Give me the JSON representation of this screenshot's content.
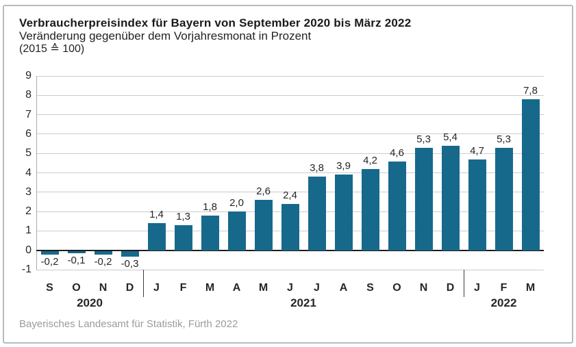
{
  "header": {
    "title": "Verbraucherpreisindex für Bayern von September 2020 bis März 2022",
    "subtitle": "Veränderung gegenüber dem Vorjahresmonat in Prozent",
    "scale_note": "(2015 ≙ 100)"
  },
  "chart_data": {
    "type": "bar",
    "title": "Verbraucherpreisindex für Bayern von September 2020 bis März 2022",
    "subtitle": "Veränderung gegenüber dem Vorjahresmonat in Prozent",
    "unit_note": "(2015 ≙ 100)",
    "categories": [
      "S",
      "O",
      "N",
      "D",
      "J",
      "F",
      "M",
      "A",
      "M",
      "J",
      "J",
      "A",
      "S",
      "O",
      "N",
      "D",
      "J",
      "F",
      "M"
    ],
    "values": [
      -0.2,
      -0.1,
      -0.2,
      -0.3,
      1.4,
      1.3,
      1.8,
      2.0,
      2.6,
      2.4,
      3.8,
      3.9,
      4.2,
      4.6,
      5.3,
      5.4,
      4.7,
      5.3,
      7.8
    ],
    "value_labels": [
      "-0,2",
      "-0,1",
      "-0,2",
      "-0,3",
      "1,4",
      "1,3",
      "1,8",
      "2,0",
      "2,6",
      "2,4",
      "3,8",
      "3,9",
      "4,2",
      "4,6",
      "5,3",
      "5,4",
      "4,7",
      "5,3",
      "7,8"
    ],
    "year_groups": [
      {
        "label": "2020",
        "start": 0,
        "end": 3
      },
      {
        "label": "2021",
        "start": 4,
        "end": 15
      },
      {
        "label": "2022",
        "start": 16,
        "end": 18
      }
    ],
    "ylim": [
      -1,
      9
    ],
    "yticks": [
      9,
      8,
      7,
      6,
      5,
      4,
      3,
      2,
      1,
      0,
      -1
    ],
    "grid": true,
    "legend": null,
    "colors": {
      "bar": "#17698c",
      "grid": "#cccccc",
      "axis": "#aaaaaa",
      "zero_line": "#1c1c1c",
      "separator": "#3c3c3c"
    }
  },
  "footer": {
    "source": "Bayerisches Landesamt für Statistik, Fürth 2022"
  }
}
